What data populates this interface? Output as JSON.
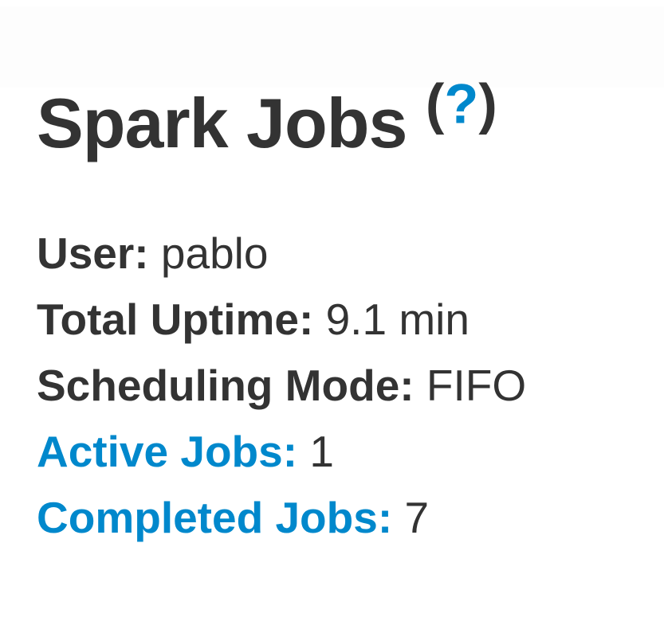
{
  "header": {
    "title": "Spark Jobs",
    "help": {
      "open_paren": "(",
      "question_mark": "?",
      "close_paren": ")"
    }
  },
  "summary": {
    "items": [
      {
        "label": "User:",
        "value": "pablo"
      },
      {
        "label": "Total Uptime:",
        "value": "9.1 min"
      },
      {
        "label": "Scheduling Mode:",
        "value": "FIFO"
      },
      {
        "label": "Active Jobs:",
        "value": "1"
      },
      {
        "label": "Completed Jobs:",
        "value": "7"
      }
    ]
  },
  "colors": {
    "link_blue": "#0088cc",
    "text_dark": "#333333",
    "background": "#ffffff"
  }
}
